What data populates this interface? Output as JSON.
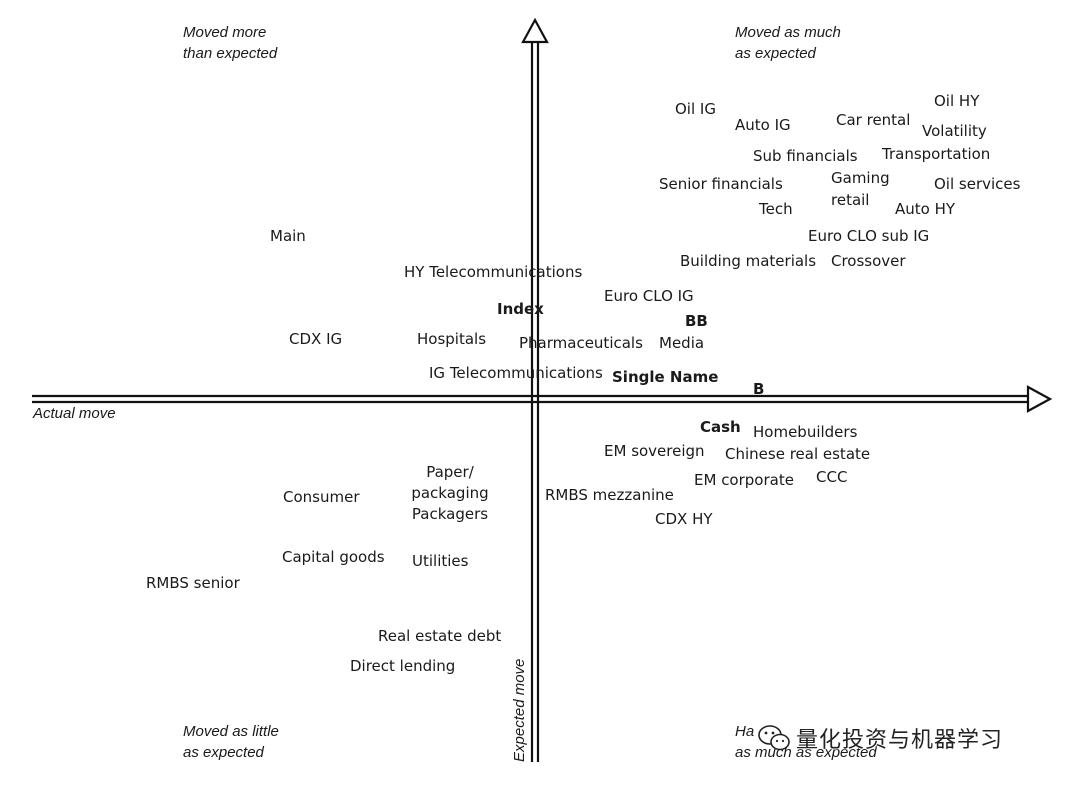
{
  "quadrants": {
    "top_left": [
      "Moved more",
      "than expected"
    ],
    "top_right": [
      "Moved as much",
      "as expected"
    ],
    "bottom_left": [
      "Moved as little",
      "as expected"
    ],
    "bottom_right": [
      "Ha",
      "as much as expected"
    ]
  },
  "axes": {
    "x_label": "Actual move",
    "y_label": "Expected move"
  },
  "labels": {
    "main": "Main",
    "hy_telecom": "HY Telecommunications",
    "index": "Index",
    "cdx_ig": "CDX IG",
    "hospitals": "Hospitals",
    "pharma": "Pharmaceuticals",
    "ig_telecom": "IG Telecommunications",
    "single_name": "Single Name",
    "oil_ig": "Oil IG",
    "auto_ig": "Auto IG",
    "car_rental": "Car rental",
    "oil_hy": "Oil HY",
    "volatility": "Volatility",
    "sub_fin": "Sub financials",
    "transportation": "Transportation",
    "senior_fin": "Senior financials",
    "gaming": "Gaming",
    "retail": "retail",
    "oil_services": "Oil services",
    "tech": "Tech",
    "auto_hy": "Auto HY",
    "euro_clo_sub_ig": "Euro CLO sub IG",
    "building_materials": "Building materials",
    "crossover": "Crossover",
    "euro_clo_ig": "Euro CLO IG",
    "bb": "BB",
    "media": "Media",
    "b": "B",
    "cash": "Cash",
    "homebuilders": "Homebuilders",
    "em_sovereign": "EM sovereign",
    "chinese_real_estate": "Chinese real estate",
    "em_corporate": "EM corporate",
    "ccc": "CCC",
    "rmbs_mezz": "RMBS mezzanine",
    "cdx_hy": "CDX HY",
    "paper": "Paper/",
    "packaging": "packaging",
    "packagers": "Packagers",
    "consumer": "Consumer",
    "capital_goods": "Capital goods",
    "utilities": "Utilities",
    "rmbs_senior": "RMBS senior",
    "real_estate_debt": "Real estate debt",
    "direct_lending": "Direct lending"
  },
  "watermark": {
    "text": "量化投资与机器学习",
    "icon": "wechat-icon"
  }
}
